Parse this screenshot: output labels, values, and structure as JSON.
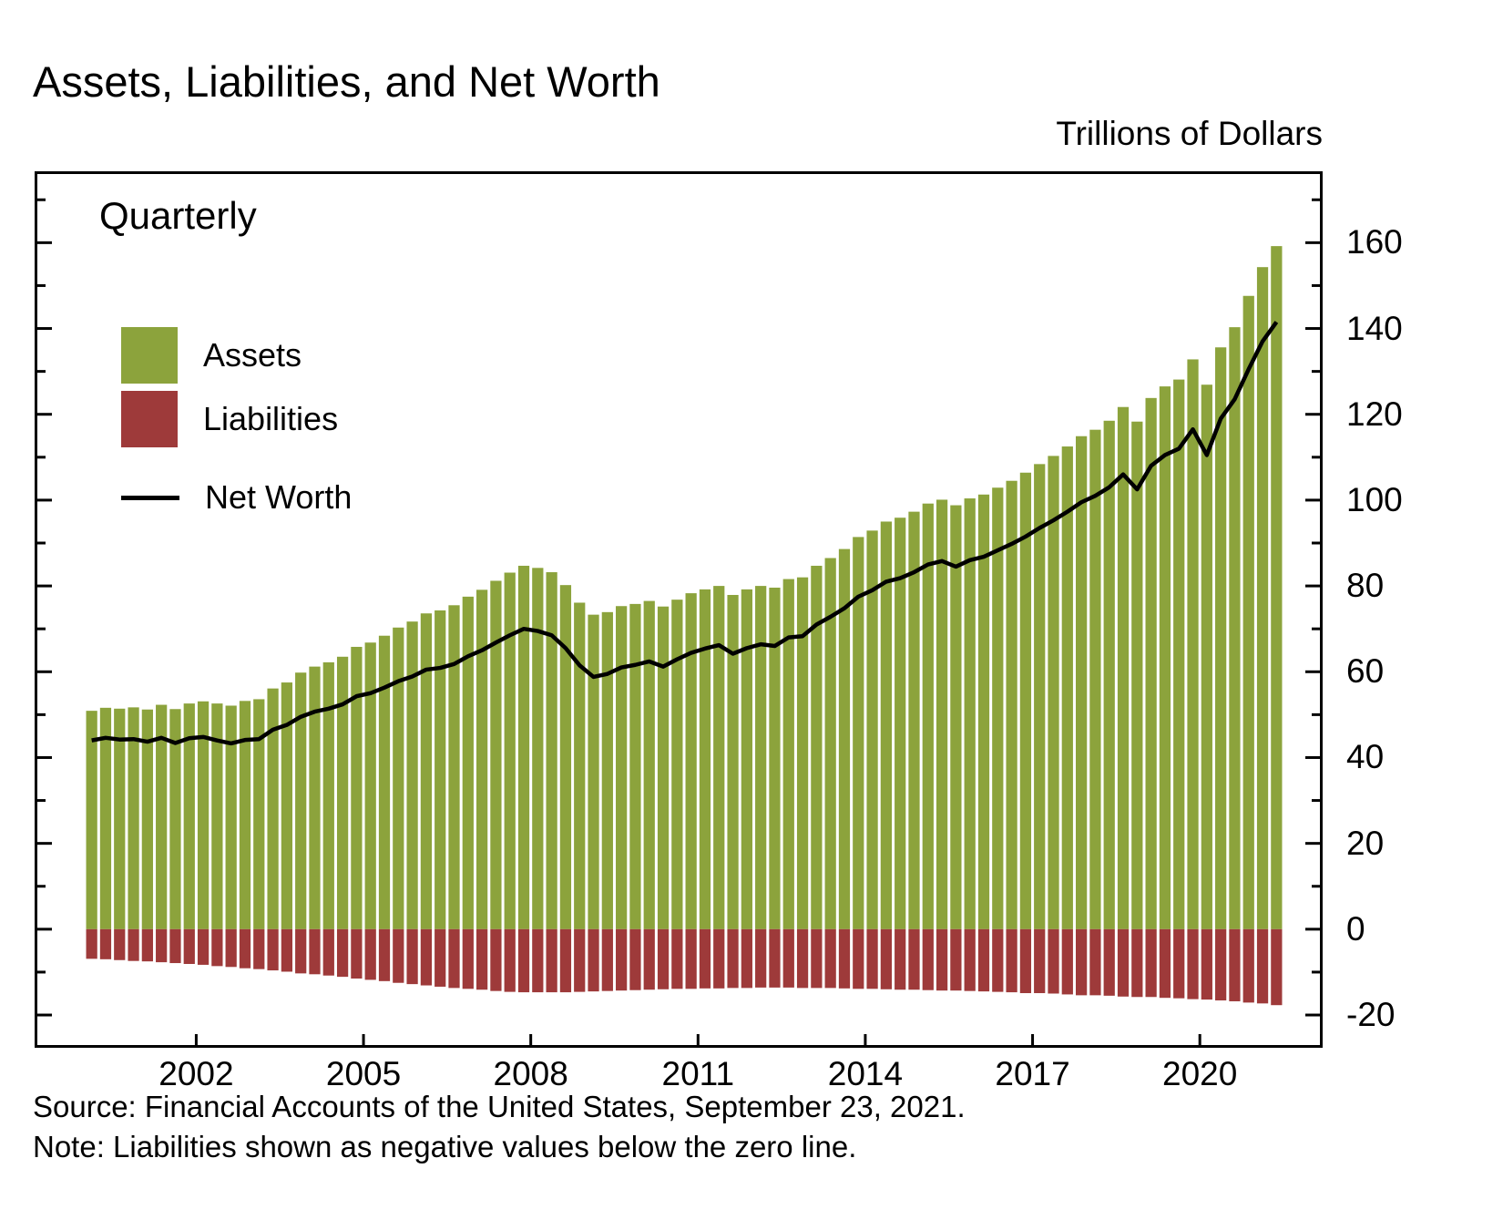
{
  "page": {
    "title": "Assets, Liabilities, and Net Worth",
    "units_label": "Trillions of Dollars",
    "frequency_label": "Quarterly",
    "source": "Source: Financial Accounts of the United States, September 23, 2021.",
    "note": "Note: Liabilities shown as negative values below the zero line."
  },
  "legend": {
    "assets": "Assets",
    "liabilities": "Liabilities",
    "net_worth": "Net Worth"
  },
  "colors": {
    "assets": "#8CA33C",
    "liabilities": "#9E3A3A",
    "net_worth": "#000000"
  },
  "chart_data": {
    "type": "bar",
    "title": "Assets, Liabilities, and Net Worth",
    "ylabel": "Trillions of Dollars",
    "frequency": "Quarterly",
    "grid": false,
    "legend_position": "upper-left",
    "ylim": [
      -27,
      176
    ],
    "y_ticks": [
      -20,
      0,
      20,
      40,
      60,
      80,
      100,
      120,
      140,
      160
    ],
    "x_tick_labels": [
      "2002",
      "2005",
      "2008",
      "2011",
      "2014",
      "2017",
      "2020"
    ],
    "x_tick_quarter_index": [
      8,
      20,
      32,
      44,
      56,
      68,
      80
    ],
    "x": [
      "2000Q1",
      "2000Q2",
      "2000Q3",
      "2000Q4",
      "2001Q1",
      "2001Q2",
      "2001Q3",
      "2001Q4",
      "2002Q1",
      "2002Q2",
      "2002Q3",
      "2002Q4",
      "2003Q1",
      "2003Q2",
      "2003Q3",
      "2003Q4",
      "2004Q1",
      "2004Q2",
      "2004Q3",
      "2004Q4",
      "2005Q1",
      "2005Q2",
      "2005Q3",
      "2005Q4",
      "2006Q1",
      "2006Q2",
      "2006Q3",
      "2006Q4",
      "2007Q1",
      "2007Q2",
      "2007Q3",
      "2007Q4",
      "2008Q1",
      "2008Q2",
      "2008Q3",
      "2008Q4",
      "2009Q1",
      "2009Q2",
      "2009Q3",
      "2009Q4",
      "2010Q1",
      "2010Q2",
      "2010Q3",
      "2010Q4",
      "2011Q1",
      "2011Q2",
      "2011Q3",
      "2011Q4",
      "2012Q1",
      "2012Q2",
      "2012Q3",
      "2012Q4",
      "2013Q1",
      "2013Q2",
      "2013Q3",
      "2013Q4",
      "2014Q1",
      "2014Q2",
      "2014Q3",
      "2014Q4",
      "2015Q1",
      "2015Q2",
      "2015Q3",
      "2015Q4",
      "2016Q1",
      "2016Q2",
      "2016Q3",
      "2016Q4",
      "2017Q1",
      "2017Q2",
      "2017Q3",
      "2017Q4",
      "2018Q1",
      "2018Q2",
      "2018Q3",
      "2018Q4",
      "2019Q1",
      "2019Q2",
      "2019Q3",
      "2019Q4",
      "2020Q1",
      "2020Q2",
      "2020Q3",
      "2020Q4",
      "2021Q1",
      "2021Q2"
    ],
    "series": [
      {
        "name": "Assets",
        "type": "bar",
        "color": "#8CA33C",
        "values": [
          50.9,
          51.6,
          51.4,
          51.7,
          51.2,
          52.3,
          51.3,
          52.6,
          53.1,
          52.6,
          52.1,
          53.2,
          53.6,
          56.1,
          57.5,
          59.8,
          61.2,
          62.2,
          63.5,
          65.8,
          66.8,
          68.4,
          70.3,
          71.7,
          73.6,
          74.3,
          75.5,
          77.5,
          79.1,
          81.2,
          83.1,
          84.7,
          84.2,
          83.2,
          80.2,
          76.1,
          73.3,
          73.9,
          75.3,
          75.8,
          76.5,
          75.2,
          76.8,
          78.3,
          79.2,
          80.0,
          77.9,
          79.2,
          80.0,
          79.6,
          81.6,
          82.0,
          84.7,
          86.5,
          88.6,
          91.4,
          92.9,
          95.0,
          95.9,
          97.3,
          99.2,
          100.1,
          98.8,
          100.4,
          101.3,
          102.9,
          104.5,
          106.4,
          108.4,
          110.3,
          112.5,
          114.9,
          116.4,
          118.5,
          121.7,
          118.3,
          123.8,
          126.5,
          128.1,
          132.8,
          126.9,
          135.6,
          140.3,
          147.6,
          154.3,
          159.2
        ]
      },
      {
        "name": "Liabilities",
        "type": "bar",
        "color": "#9E3A3A",
        "values": [
          -6.9,
          -7.0,
          -7.2,
          -7.4,
          -7.5,
          -7.7,
          -7.9,
          -8.1,
          -8.3,
          -8.6,
          -8.8,
          -9.1,
          -9.3,
          -9.6,
          -9.9,
          -10.3,
          -10.5,
          -10.8,
          -11.1,
          -11.5,
          -11.8,
          -12.1,
          -12.5,
          -12.8,
          -13.1,
          -13.4,
          -13.7,
          -13.9,
          -14.1,
          -14.4,
          -14.6,
          -14.7,
          -14.7,
          -14.7,
          -14.7,
          -14.6,
          -14.5,
          -14.4,
          -14.3,
          -14.2,
          -14.1,
          -14.0,
          -13.9,
          -13.9,
          -13.8,
          -13.8,
          -13.7,
          -13.7,
          -13.6,
          -13.6,
          -13.6,
          -13.7,
          -13.7,
          -13.7,
          -13.8,
          -13.9,
          -13.9,
          -14.0,
          -14.1,
          -14.1,
          -14.2,
          -14.3,
          -14.3,
          -14.4,
          -14.5,
          -14.6,
          -14.7,
          -14.9,
          -14.9,
          -15.0,
          -15.2,
          -15.4,
          -15.4,
          -15.5,
          -15.7,
          -15.8,
          -15.8,
          -16.0,
          -16.1,
          -16.3,
          -16.4,
          -16.6,
          -16.8,
          -17.1,
          -17.3,
          -17.7
        ]
      },
      {
        "name": "Net Worth",
        "type": "line",
        "color": "#000000",
        "values": [
          44.0,
          44.6,
          44.2,
          44.3,
          43.7,
          44.6,
          43.4,
          44.5,
          44.8,
          44.0,
          43.3,
          44.1,
          44.3,
          46.5,
          47.6,
          49.5,
          50.7,
          51.4,
          52.4,
          54.3,
          55.0,
          56.3,
          57.8,
          58.9,
          60.5,
          60.9,
          61.8,
          63.6,
          65.0,
          66.8,
          68.5,
          70.0,
          69.5,
          68.5,
          65.5,
          61.5,
          58.8,
          59.5,
          61.0,
          61.6,
          62.4,
          61.2,
          62.9,
          64.4,
          65.4,
          66.2,
          64.2,
          65.5,
          66.4,
          66.0,
          68.0,
          68.3,
          71.0,
          72.8,
          74.8,
          77.5,
          79.0,
          81.0,
          81.8,
          83.2,
          85.0,
          85.8,
          84.5,
          86.0,
          86.8,
          88.3,
          89.8,
          91.5,
          93.5,
          95.3,
          97.3,
          99.5,
          101.0,
          103.0,
          106.0,
          102.5,
          108.0,
          110.5,
          112.0,
          116.5,
          110.5,
          119.0,
          123.5,
          130.5,
          137.0,
          141.5
        ]
      }
    ]
  }
}
